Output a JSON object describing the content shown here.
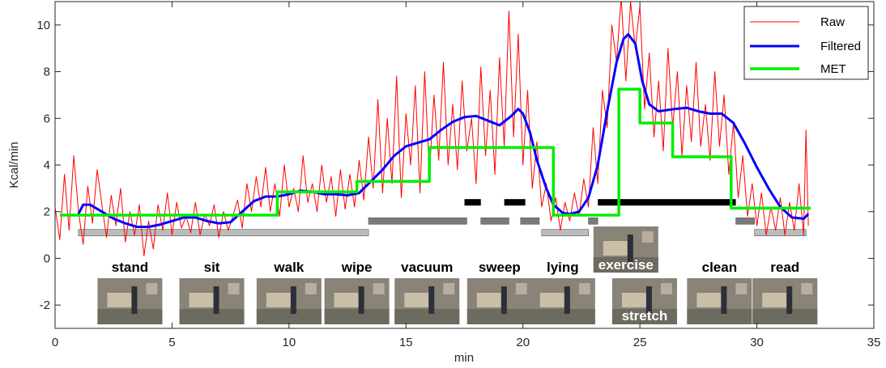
{
  "chart_data": {
    "type": "line",
    "xlabel": "min",
    "ylabel": "Kcal/min",
    "xlim": [
      0,
      35
    ],
    "ylim": [
      -3,
      11
    ],
    "xticks": [
      0,
      5,
      10,
      15,
      20,
      25,
      30,
      35
    ],
    "yticks": [
      -2,
      0,
      2,
      4,
      6,
      8,
      10
    ],
    "legend_position": "top-right",
    "series": [
      {
        "name": "Raw",
        "color": "#ff0000",
        "style": "thin-noisy",
        "points": [
          [
            0,
            2.2
          ],
          [
            0.2,
            0.8
          ],
          [
            0.4,
            3.6
          ],
          [
            0.6,
            1.2
          ],
          [
            0.8,
            4.4
          ],
          [
            1.0,
            2.0
          ],
          [
            1.2,
            0.6
          ],
          [
            1.4,
            3.1
          ],
          [
            1.6,
            1.5
          ],
          [
            1.8,
            3.8
          ],
          [
            2.0,
            2.3
          ],
          [
            2.2,
            0.9
          ],
          [
            2.4,
            2.7
          ],
          [
            2.6,
            1.4
          ],
          [
            2.8,
            3.0
          ],
          [
            3.0,
            0.7
          ],
          [
            3.2,
            2.0
          ],
          [
            3.4,
            1.0
          ],
          [
            3.6,
            2.3
          ],
          [
            3.8,
            0.1
          ],
          [
            4.0,
            1.6
          ],
          [
            4.2,
            0.4
          ],
          [
            4.4,
            2.3
          ],
          [
            4.6,
            1.2
          ],
          [
            4.8,
            2.8
          ],
          [
            5.0,
            1.0
          ],
          [
            5.2,
            2.4
          ],
          [
            5.4,
            1.3
          ],
          [
            5.6,
            1.8
          ],
          [
            5.8,
            1.1
          ],
          [
            6.0,
            2.4
          ],
          [
            6.2,
            1.0
          ],
          [
            6.4,
            1.9
          ],
          [
            6.6,
            1.4
          ],
          [
            6.8,
            2.3
          ],
          [
            7.0,
            0.9
          ],
          [
            7.2,
            2.0
          ],
          [
            7.4,
            1.2
          ],
          [
            7.6,
            1.8
          ],
          [
            7.8,
            2.5
          ],
          [
            8.0,
            1.3
          ],
          [
            8.2,
            3.2
          ],
          [
            8.4,
            2.0
          ],
          [
            8.6,
            3.5
          ],
          [
            8.8,
            2.2
          ],
          [
            9.0,
            3.9
          ],
          [
            9.2,
            2.0
          ],
          [
            9.4,
            3.2
          ],
          [
            9.6,
            1.8
          ],
          [
            9.8,
            4.0
          ],
          [
            10.0,
            2.2
          ],
          [
            10.2,
            3.0
          ],
          [
            10.4,
            2.0
          ],
          [
            10.6,
            4.4
          ],
          [
            10.8,
            2.4
          ],
          [
            11.0,
            3.2
          ],
          [
            11.2,
            2.0
          ],
          [
            11.4,
            4.0
          ],
          [
            11.6,
            2.4
          ],
          [
            11.8,
            3.5
          ],
          [
            12.0,
            1.8
          ],
          [
            12.2,
            3.8
          ],
          [
            12.4,
            2.1
          ],
          [
            12.6,
            3.6
          ],
          [
            12.8,
            2.2
          ],
          [
            13.0,
            4.2
          ],
          [
            13.2,
            2.5
          ],
          [
            13.4,
            5.2
          ],
          [
            13.6,
            3.0
          ],
          [
            13.8,
            6.8
          ],
          [
            14.0,
            2.8
          ],
          [
            14.2,
            6.0
          ],
          [
            14.4,
            3.2
          ],
          [
            14.6,
            7.8
          ],
          [
            14.8,
            2.6
          ],
          [
            15.0,
            6.2
          ],
          [
            15.2,
            4.0
          ],
          [
            15.4,
            7.4
          ],
          [
            15.6,
            2.8
          ],
          [
            15.8,
            8.0
          ],
          [
            16.0,
            3.6
          ],
          [
            16.2,
            7.0
          ],
          [
            16.4,
            4.2
          ],
          [
            16.6,
            8.4
          ],
          [
            16.8,
            4.0
          ],
          [
            17.0,
            6.6
          ],
          [
            17.2,
            3.8
          ],
          [
            17.4,
            7.6
          ],
          [
            17.6,
            4.6
          ],
          [
            17.8,
            6.0
          ],
          [
            18.0,
            3.2
          ],
          [
            18.2,
            8.2
          ],
          [
            18.4,
            4.4
          ],
          [
            18.6,
            7.2
          ],
          [
            18.8,
            3.6
          ],
          [
            19.0,
            8.6
          ],
          [
            19.2,
            4.8
          ],
          [
            19.4,
            10.6
          ],
          [
            19.6,
            5.2
          ],
          [
            19.8,
            9.6
          ],
          [
            20.0,
            4.0
          ],
          [
            20.2,
            7.2
          ],
          [
            20.4,
            3.0
          ],
          [
            20.6,
            5.0
          ],
          [
            20.8,
            2.2
          ],
          [
            21.0,
            3.2
          ],
          [
            21.2,
            1.6
          ],
          [
            21.4,
            2.6
          ],
          [
            21.6,
            1.2
          ],
          [
            21.8,
            2.4
          ],
          [
            22.0,
            1.6
          ],
          [
            22.2,
            2.8
          ],
          [
            22.4,
            1.8
          ],
          [
            22.6,
            3.4
          ],
          [
            22.8,
            2.2
          ],
          [
            23.0,
            5.6
          ],
          [
            23.2,
            3.2
          ],
          [
            23.4,
            7.2
          ],
          [
            23.6,
            5.6
          ],
          [
            23.8,
            10.0
          ],
          [
            24.0,
            8.4
          ],
          [
            24.2,
            11.2
          ],
          [
            24.4,
            7.6
          ],
          [
            24.6,
            11.0
          ],
          [
            24.8,
            9.0
          ],
          [
            25.0,
            10.8
          ],
          [
            25.2,
            6.4
          ],
          [
            25.4,
            8.8
          ],
          [
            25.6,
            5.2
          ],
          [
            25.8,
            7.6
          ],
          [
            26.0,
            4.6
          ],
          [
            26.2,
            9.0
          ],
          [
            26.4,
            5.6
          ],
          [
            26.6,
            8.0
          ],
          [
            26.8,
            4.4
          ],
          [
            27.0,
            7.4
          ],
          [
            27.2,
            5.0
          ],
          [
            27.4,
            8.4
          ],
          [
            27.6,
            4.8
          ],
          [
            27.8,
            6.6
          ],
          [
            28.0,
            4.2
          ],
          [
            28.2,
            8.0
          ],
          [
            28.4,
            4.8
          ],
          [
            28.6,
            7.0
          ],
          [
            28.8,
            3.6
          ],
          [
            29.0,
            5.8
          ],
          [
            29.2,
            2.6
          ],
          [
            29.4,
            4.4
          ],
          [
            29.6,
            1.8
          ],
          [
            29.8,
            3.2
          ],
          [
            30.0,
            1.4
          ],
          [
            30.2,
            2.8
          ],
          [
            30.4,
            1.0
          ],
          [
            30.6,
            2.2
          ],
          [
            30.8,
            1.2
          ],
          [
            31.0,
            2.6
          ],
          [
            31.2,
            1.0
          ],
          [
            31.4,
            2.4
          ],
          [
            31.6,
            1.2
          ],
          [
            31.8,
            3.2
          ],
          [
            32.0,
            1.0
          ],
          [
            32.1,
            5.5
          ],
          [
            32.2,
            1.4
          ]
        ]
      },
      {
        "name": "Filtered",
        "color": "#0000ff",
        "points": [
          [
            1.0,
            1.9
          ],
          [
            1.2,
            2.3
          ],
          [
            1.5,
            2.3
          ],
          [
            2.0,
            2.0
          ],
          [
            2.5,
            1.7
          ],
          [
            3.0,
            1.5
          ],
          [
            3.5,
            1.35
          ],
          [
            4.0,
            1.35
          ],
          [
            4.5,
            1.45
          ],
          [
            5.0,
            1.6
          ],
          [
            5.5,
            1.75
          ],
          [
            6.0,
            1.75
          ],
          [
            6.5,
            1.6
          ],
          [
            7.0,
            1.5
          ],
          [
            7.5,
            1.55
          ],
          [
            8.0,
            2.0
          ],
          [
            8.5,
            2.45
          ],
          [
            9.0,
            2.65
          ],
          [
            9.5,
            2.65
          ],
          [
            10.0,
            2.75
          ],
          [
            10.5,
            2.9
          ],
          [
            11.0,
            2.85
          ],
          [
            11.5,
            2.75
          ],
          [
            12.0,
            2.75
          ],
          [
            12.5,
            2.7
          ],
          [
            13.0,
            2.8
          ],
          [
            13.5,
            3.3
          ],
          [
            14.0,
            3.8
          ],
          [
            14.5,
            4.4
          ],
          [
            15.0,
            4.8
          ],
          [
            15.5,
            4.95
          ],
          [
            16.0,
            5.1
          ],
          [
            16.5,
            5.5
          ],
          [
            17.0,
            5.85
          ],
          [
            17.5,
            6.05
          ],
          [
            18.0,
            6.1
          ],
          [
            18.5,
            5.9
          ],
          [
            19.0,
            5.7
          ],
          [
            19.5,
            6.1
          ],
          [
            19.8,
            6.4
          ],
          [
            20.0,
            6.2
          ],
          [
            20.3,
            5.4
          ],
          [
            20.6,
            4.2
          ],
          [
            21.0,
            3.0
          ],
          [
            21.3,
            2.3
          ],
          [
            21.7,
            1.95
          ],
          [
            22.0,
            1.9
          ],
          [
            22.4,
            2.0
          ],
          [
            22.8,
            2.6
          ],
          [
            23.2,
            4.0
          ],
          [
            23.6,
            6.3
          ],
          [
            24.0,
            8.4
          ],
          [
            24.3,
            9.4
          ],
          [
            24.5,
            9.6
          ],
          [
            24.8,
            9.2
          ],
          [
            25.1,
            7.6
          ],
          [
            25.4,
            6.6
          ],
          [
            25.8,
            6.3
          ],
          [
            26.5,
            6.4
          ],
          [
            27.0,
            6.45
          ],
          [
            27.5,
            6.3
          ],
          [
            28.0,
            6.2
          ],
          [
            28.5,
            6.2
          ],
          [
            29.0,
            5.8
          ],
          [
            29.5,
            4.9
          ],
          [
            30.0,
            3.9
          ],
          [
            30.5,
            3.0
          ],
          [
            31.0,
            2.2
          ],
          [
            31.5,
            1.75
          ],
          [
            32.0,
            1.7
          ],
          [
            32.2,
            1.9
          ]
        ]
      },
      {
        "name": "MET",
        "color": "#00ee00",
        "points": [
          [
            0.2,
            1.85
          ],
          [
            9.5,
            1.85
          ],
          [
            9.5,
            2.85
          ],
          [
            12.9,
            2.85
          ],
          [
            12.9,
            3.3
          ],
          [
            16.0,
            3.3
          ],
          [
            16.0,
            4.75
          ],
          [
            21.3,
            4.75
          ],
          [
            21.3,
            1.85
          ],
          [
            24.1,
            1.85
          ],
          [
            24.1,
            7.25
          ],
          [
            25.0,
            7.25
          ],
          [
            25.0,
            5.8
          ],
          [
            26.4,
            5.8
          ],
          [
            26.4,
            4.35
          ],
          [
            28.9,
            4.35
          ],
          [
            28.9,
            2.15
          ],
          [
            32.3,
            2.15
          ]
        ]
      }
    ],
    "activity_bars": [
      {
        "start": 1.0,
        "end": 13.4,
        "y": 1.1,
        "color": "#bcbcbc"
      },
      {
        "start": 13.4,
        "end": 17.6,
        "y": 1.6,
        "color": "#7a7a7a"
      },
      {
        "start": 18.2,
        "end": 19.4,
        "y": 1.6,
        "color": "#7a7a7a"
      },
      {
        "start": 19.9,
        "end": 20.7,
        "y": 1.6,
        "color": "#7a7a7a"
      },
      {
        "start": 20.8,
        "end": 22.8,
        "y": 1.1,
        "color": "#bcbcbc"
      },
      {
        "start": 22.8,
        "end": 23.2,
        "y": 1.6,
        "color": "#7a7a7a"
      },
      {
        "start": 17.5,
        "end": 18.2,
        "y": 2.4,
        "color": "#000000"
      },
      {
        "start": 19.2,
        "end": 20.1,
        "y": 2.4,
        "color": "#000000"
      },
      {
        "start": 23.2,
        "end": 29.1,
        "y": 2.4,
        "color": "#000000"
      },
      {
        "start": 29.1,
        "end": 29.9,
        "y": 1.6,
        "color": "#7a7a7a"
      },
      {
        "start": 29.9,
        "end": 32.1,
        "y": 1.1,
        "color": "#bcbcbc"
      }
    ],
    "activities": [
      {
        "label": "stand",
        "x": 3.2
      },
      {
        "label": "sit",
        "x": 6.7
      },
      {
        "label": "walk",
        "x": 10.0
      },
      {
        "label": "wipe",
        "x": 12.9
      },
      {
        "label": "vacuum",
        "x": 15.9
      },
      {
        "label": "sweep",
        "x": 19.0
      },
      {
        "label": "lying",
        "x": 21.7
      },
      {
        "label": "exercise",
        "x": 24.4
      },
      {
        "label": "stretch",
        "x": 25.2
      },
      {
        "label": "clean",
        "x": 28.4
      },
      {
        "label": "read",
        "x": 31.2
      }
    ]
  }
}
